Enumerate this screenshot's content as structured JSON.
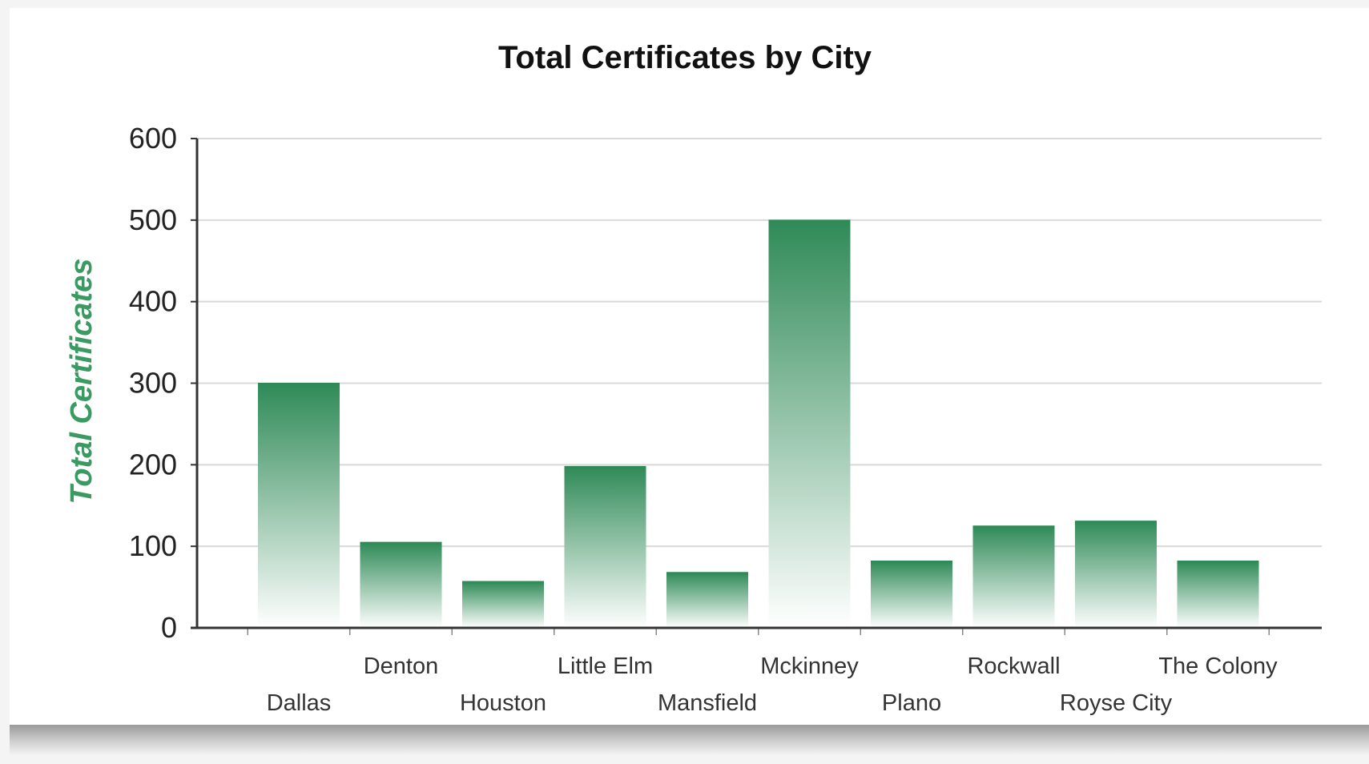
{
  "chart_data": {
    "type": "bar",
    "title": "Total Certificates by City",
    "xlabel": "",
    "ylabel": "Total Certificates",
    "categories": [
      "Dallas",
      "Denton",
      "Houston",
      "Little Elm",
      "Mansfield",
      "Mckinney",
      "Plano",
      "Rockwall",
      "Royse City",
      "The Colony"
    ],
    "values": [
      300,
      105,
      57,
      198,
      68,
      500,
      82,
      125,
      131,
      82
    ],
    "ylim": [
      0,
      600
    ],
    "yticks": [
      "0",
      "100",
      "200",
      "300",
      "400",
      "500",
      "600"
    ],
    "grid": true,
    "legend": "none",
    "colors": {
      "bar_top": "#2f8a57",
      "bar_bottom": "#ffffff",
      "ylabel": "#3a9a62",
      "gridline": "#d9d9d9",
      "axis": "#333333"
    }
  }
}
